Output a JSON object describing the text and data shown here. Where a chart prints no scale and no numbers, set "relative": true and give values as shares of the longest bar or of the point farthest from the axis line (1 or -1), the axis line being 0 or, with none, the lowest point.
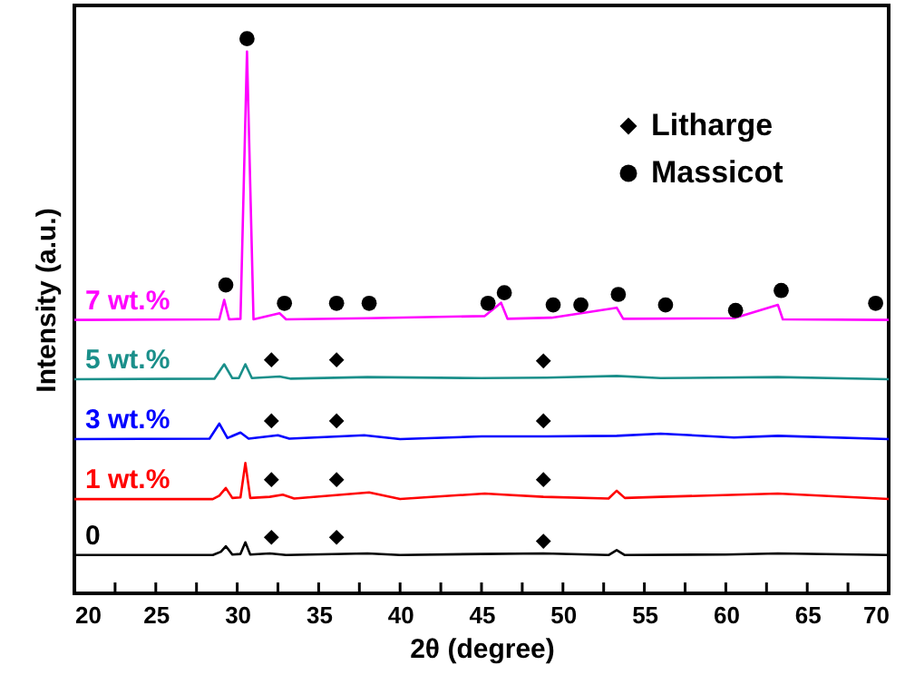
{
  "chart_data": {
    "type": "line",
    "relative": true,
    "xlabel": "2θ (degree)",
    "ylabel": "Intensity (a.u.)",
    "xlim": [
      20,
      70
    ],
    "xticks": [
      20,
      {
        "value": 22.5,
        "label": null
      },
      25,
      {
        "value": 27.5,
        "label": null
      },
      30,
      {
        "value": 32.5,
        "label": null
      },
      35,
      {
        "value": 37.5,
        "label": null
      },
      40,
      {
        "value": 42.5,
        "label": null
      },
      45,
      {
        "value": 47.5,
        "label": null
      },
      50,
      {
        "value": 52.5,
        "label": null
      },
      55,
      {
        "value": 57.5,
        "label": null
      },
      60,
      {
        "value": 62.5,
        "label": null
      },
      65,
      {
        "value": 67.5,
        "label": null
      },
      70
    ],
    "tick_labels": "x",
    "grid": false,
    "legend": "top right",
    "line_style": "solid",
    "series": [
      {
        "name": "0",
        "color": "#000000",
        "x": [
          20,
          28.5,
          29.0,
          29.3,
          29.7,
          30.2,
          30.5,
          30.8,
          32.0,
          33.0,
          38.0,
          40.0,
          45.0,
          48.8,
          52.8,
          53.3,
          53.8,
          60.0,
          63.2,
          70
        ],
        "values": [
          0.069,
          0.069,
          0.075,
          0.085,
          0.07,
          0.071,
          0.092,
          0.07,
          0.072,
          0.069,
          0.072,
          0.069,
          0.071,
          0.072,
          0.069,
          0.078,
          0.069,
          0.07,
          0.072,
          0.069
        ]
      },
      {
        "name": "1 wt.%",
        "color": "#ff0000",
        "x": [
          20,
          28.5,
          28.9,
          29.3,
          29.7,
          30.2,
          30.5,
          30.8,
          32.0,
          32.8,
          33.5,
          38.1,
          40.0,
          45.2,
          46.4,
          48.8,
          52.8,
          53.3,
          53.8,
          56.0,
          63.2,
          70
        ],
        "values": [
          0.17,
          0.17,
          0.176,
          0.19,
          0.172,
          0.173,
          0.235,
          0.172,
          0.174,
          0.178,
          0.171,
          0.182,
          0.17,
          0.18,
          0.178,
          0.174,
          0.171,
          0.185,
          0.172,
          0.174,
          0.18,
          0.17
        ]
      },
      {
        "name": "3 wt.%",
        "color": "#0000ff",
        "x": [
          20,
          28.3,
          28.9,
          29.4,
          30.2,
          30.7,
          32.5,
          33.2,
          37.8,
          40.0,
          45.0,
          49.0,
          53.3,
          56.0,
          60.5,
          63.2,
          70
        ],
        "values": [
          0.278,
          0.279,
          0.306,
          0.28,
          0.29,
          0.279,
          0.285,
          0.279,
          0.285,
          0.278,
          0.283,
          0.283,
          0.284,
          0.288,
          0.281,
          0.284,
          0.278
        ]
      },
      {
        "name": "5 wt.%",
        "color": "#1a8f8a",
        "x": [
          20,
          28.6,
          29.2,
          29.7,
          30.1,
          30.5,
          30.9,
          32.6,
          33.3,
          38.0,
          45.0,
          49.0,
          53.3,
          56.0,
          63.2,
          70
        ],
        "values": [
          0.386,
          0.387,
          0.413,
          0.388,
          0.388,
          0.413,
          0.388,
          0.391,
          0.387,
          0.39,
          0.388,
          0.389,
          0.392,
          0.388,
          0.39,
          0.386
        ]
      },
      {
        "name": "7 wt.%",
        "color": "#ff00ff",
        "x": [
          20,
          28.9,
          29.2,
          29.5,
          30.2,
          30.6,
          31.0,
          32.6,
          33.0,
          38.0,
          45.2,
          46.2,
          46.6,
          49.3,
          53.3,
          53.7,
          60.5,
          63.2,
          63.5,
          70
        ],
        "values": [
          0.493,
          0.494,
          0.529,
          0.494,
          0.495,
          0.977,
          0.494,
          0.505,
          0.494,
          0.496,
          0.5,
          0.524,
          0.495,
          0.497,
          0.515,
          0.495,
          0.496,
          0.52,
          0.494,
          0.493
        ]
      },
      {
        "name": "Litharge",
        "type": "scatter",
        "marker": "diamond",
        "color": "#000000",
        "x": [
          32.1,
          36.1,
          48.8,
          32.1,
          36.1,
          48.8,
          32.1,
          36.1,
          48.8,
          32.1,
          36.1,
          48.8
        ],
        "values": [
          0.421,
          0.421,
          0.419,
          0.311,
          0.311,
          0.311,
          0.205,
          0.205,
          0.205,
          0.101,
          0.101,
          0.094
        ]
      },
      {
        "name": "Massicot",
        "type": "scatter",
        "marker": "circle",
        "color": "#000000",
        "x": [
          29.3,
          30.6,
          32.9,
          36.1,
          38.1,
          45.4,
          46.4,
          49.4,
          51.1,
          53.4,
          56.3,
          60.6,
          63.4,
          69.2
        ],
        "values": [
          0.556,
          1.0,
          0.523,
          0.523,
          0.523,
          0.523,
          0.542,
          0.52,
          0.52,
          0.539,
          0.52,
          0.51,
          0.546,
          0.523
        ]
      }
    ]
  }
}
